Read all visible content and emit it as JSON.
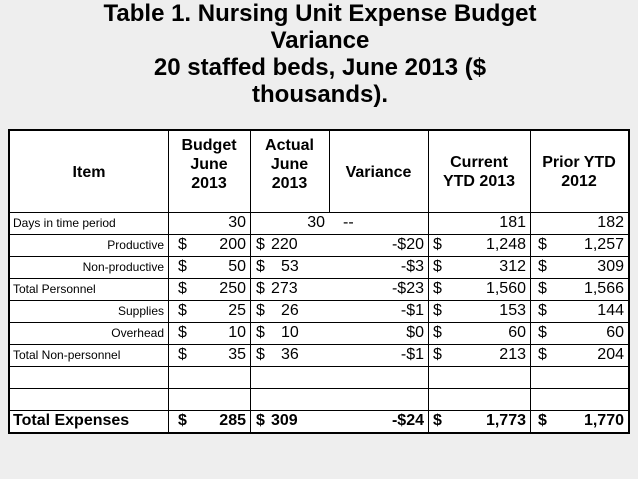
{
  "title": {
    "line1": "Table 1.  Nursing Unit Expense Budget",
    "line2": "Variance",
    "line3": "20 staffed beds, June 2013 ($",
    "line4": "thousands)."
  },
  "header": {
    "item": "Item",
    "budget": [
      "Budget",
      "June",
      "2013"
    ],
    "actual": [
      "Actual",
      "June",
      "2013"
    ],
    "variance": "Variance",
    "current": [
      "Current",
      "YTD 2013"
    ],
    "prior": [
      "Prior YTD",
      "2012"
    ]
  },
  "rows": [
    {
      "label": "Days in time period",
      "budget": "30",
      "actual": "30",
      "variance": "--",
      "current": "181",
      "prior": "182"
    },
    {
      "label": "Productive",
      "budget": "200",
      "actual": "220",
      "variance": "-$20",
      "current": "1,248",
      "prior": "1,257"
    },
    {
      "label": "Non-productive",
      "budget": "50",
      "actual": "53",
      "variance": "-$3",
      "current": "312",
      "prior": "309"
    },
    {
      "label": "Total Personnel",
      "budget": "250",
      "actual": "273",
      "variance": "-$23",
      "current": "1,560",
      "prior": "1,566"
    },
    {
      "label": "Supplies",
      "budget": "25",
      "actual": "26",
      "variance": "-$1",
      "current": "153",
      "prior": "144"
    },
    {
      "label": "Overhead",
      "budget": "10",
      "actual": "10",
      "variance": "$0",
      "current": "60",
      "prior": "60"
    },
    {
      "label": "Total Non-personnel",
      "budget": "35",
      "actual": "36",
      "variance": "-$1",
      "current": "213",
      "prior": "204"
    },
    {
      "label": "Total Expenses",
      "budget": "285",
      "actual": "309",
      "variance": "-$24",
      "current": "1,773",
      "prior": "1,770"
    }
  ],
  "currency_symbol": "$"
}
